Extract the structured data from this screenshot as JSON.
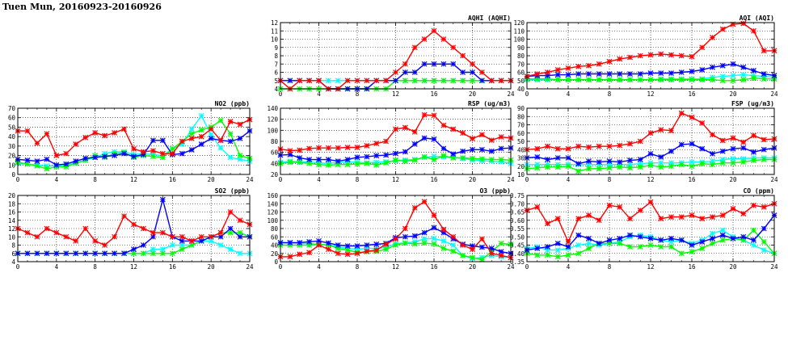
{
  "page": {
    "title": "Tuen Mun, 20160923-20160926"
  },
  "colors": {
    "red": "#ff0000",
    "blue": "#0000ff",
    "green": "#00ff00",
    "cyan": "#00ffff"
  },
  "chart_data": [
    {
      "id": "aqhi",
      "type": "line",
      "title": "AQHI (AQHI)",
      "xlim": [
        0,
        24
      ],
      "xticks": [
        0,
        4,
        8,
        12,
        16,
        20,
        24
      ],
      "ylim": [
        4,
        12
      ],
      "yticks": [
        4,
        5,
        6,
        7,
        8,
        9,
        10,
        11,
        12
      ],
      "grid": true,
      "series": [
        {
          "color": "red",
          "values": [
            5,
            4,
            5,
            5,
            5,
            4,
            4,
            5,
            5,
            5,
            5,
            5,
            6,
            7,
            9,
            10,
            11,
            10,
            9,
            8,
            7,
            6,
            5,
            5,
            5
          ]
        },
        {
          "color": "blue",
          "values": [
            5,
            5,
            5,
            5,
            5,
            4,
            4,
            4,
            4,
            4,
            5,
            5,
            5,
            6,
            6,
            7,
            7,
            7,
            7,
            6,
            6,
            5,
            5,
            5,
            5
          ]
        },
        {
          "color": "green",
          "values": [
            4,
            4,
            4,
            4,
            4,
            4,
            4,
            4,
            4,
            4,
            4,
            4,
            5,
            5,
            5,
            5,
            5,
            5,
            5,
            5,
            5,
            5,
            5,
            5,
            5
          ]
        },
        {
          "color": "cyan",
          "values": [
            5,
            5,
            5,
            5,
            5,
            5,
            5,
            5,
            5,
            5,
            5,
            5,
            5,
            5,
            5,
            5,
            5,
            5,
            5,
            5,
            5,
            5,
            5,
            5,
            5
          ]
        }
      ]
    },
    {
      "id": "aqi",
      "type": "line",
      "title": "AQI (AQI)",
      "xlim": [
        0,
        24
      ],
      "xticks": [
        0,
        4,
        8,
        12,
        16,
        20,
        24
      ],
      "ylim": [
        40,
        120
      ],
      "yticks": [
        40,
        50,
        60,
        70,
        80,
        90,
        100,
        110,
        120
      ],
      "grid": true,
      "series": [
        {
          "color": "red",
          "values": [
            55,
            58,
            60,
            63,
            65,
            67,
            68,
            70,
            73,
            76,
            78,
            80,
            81,
            82,
            81,
            80,
            79,
            90,
            102,
            112,
            118,
            119,
            110,
            86,
            86
          ]
        },
        {
          "color": "blue",
          "values": [
            55,
            56,
            56,
            57,
            57,
            58,
            58,
            58,
            58,
            58,
            58,
            58,
            59,
            59,
            59,
            60,
            61,
            63,
            66,
            68,
            70,
            66,
            62,
            58,
            56
          ]
        },
        {
          "color": "green",
          "values": [
            52,
            52,
            52,
            51,
            51,
            51,
            51,
            51,
            51,
            51,
            51,
            51,
            51,
            51,
            51,
            51,
            51,
            51,
            51,
            50,
            50,
            51,
            53,
            52,
            52
          ]
        },
        {
          "color": "cyan",
          "values": [
            51,
            51,
            51,
            51,
            51,
            51,
            51,
            51,
            51,
            51,
            51,
            51,
            51,
            52,
            52,
            52,
            52,
            52,
            54,
            55,
            56,
            57,
            56,
            55,
            54
          ]
        }
      ]
    },
    {
      "id": "no2",
      "type": "line",
      "title": "NO2 (ppb)",
      "xlim": [
        0,
        24
      ],
      "xticks": [
        0,
        4,
        8,
        12,
        16,
        20,
        24
      ],
      "ylim": [
        0,
        70
      ],
      "yticks": [
        0,
        10,
        20,
        30,
        40,
        50,
        60,
        70
      ],
      "grid": true,
      "series": [
        {
          "color": "red",
          "values": [
            46,
            46,
            33,
            43,
            20,
            22,
            32,
            39,
            44,
            41,
            44,
            48,
            27,
            24,
            25,
            22,
            22,
            35,
            38,
            40,
            48,
            36,
            56,
            53,
            58
          ]
        },
        {
          "color": "blue",
          "values": [
            16,
            15,
            14,
            16,
            10,
            11,
            14,
            17,
            18,
            19,
            20,
            22,
            19,
            21,
            36,
            36,
            21,
            22,
            26,
            32,
            38,
            36,
            35,
            38,
            46
          ]
        },
        {
          "color": "green",
          "values": [
            13,
            11,
            9,
            6,
            8,
            8,
            12,
            15,
            20,
            18,
            22,
            23,
            18,
            20,
            19,
            18,
            27,
            35,
            43,
            47,
            50,
            57,
            43,
            20,
            17
          ]
        },
        {
          "color": "cyan",
          "values": [
            12,
            11,
            10,
            9,
            9,
            10,
            12,
            15,
            18,
            22,
            24,
            24,
            21,
            22,
            21,
            20,
            27,
            32,
            48,
            62,
            42,
            28,
            18,
            16,
            14
          ]
        }
      ]
    },
    {
      "id": "rsp",
      "type": "line",
      "title": "RSP (ug/m3)",
      "xlim": [
        0,
        24
      ],
      "xticks": [
        0,
        4,
        8,
        12,
        16,
        20,
        24
      ],
      "ylim": [
        20,
        140
      ],
      "yticks": [
        20,
        40,
        60,
        80,
        100,
        120,
        140
      ],
      "grid": true,
      "series": [
        {
          "color": "red",
          "values": [
            66,
            63,
            64,
            67,
            68,
            68,
            68,
            69,
            69,
            72,
            76,
            80,
            102,
            105,
            97,
            128,
            127,
            109,
            102,
            95,
            85,
            92,
            82,
            88,
            86
          ]
        },
        {
          "color": "blue",
          "values": [
            55,
            56,
            50,
            47,
            47,
            47,
            44,
            47,
            51,
            52,
            54,
            55,
            58,
            61,
            75,
            86,
            84,
            67,
            57,
            62,
            65,
            65,
            62,
            67,
            68
          ]
        },
        {
          "color": "green",
          "values": [
            40,
            42,
            42,
            40,
            38,
            37,
            38,
            38,
            39,
            40,
            37,
            41,
            46,
            44,
            46,
            52,
            47,
            54,
            50,
            50,
            49,
            48,
            47,
            47,
            46
          ]
        },
        {
          "color": "cyan",
          "values": [
            42,
            44,
            43,
            43,
            41,
            40,
            42,
            43,
            42,
            41,
            42,
            43,
            45,
            46,
            47,
            51,
            53,
            52,
            51,
            49,
            46,
            45,
            44,
            43,
            40
          ]
        }
      ]
    },
    {
      "id": "fsp",
      "type": "line",
      "title": "FSP (ug/m3)",
      "xlim": [
        0,
        24
      ],
      "xticks": [
        0,
        4,
        8,
        12,
        16,
        20,
        24
      ],
      "ylim": [
        10,
        90
      ],
      "yticks": [
        10,
        20,
        30,
        40,
        50,
        60,
        70,
        80,
        90
      ],
      "grid": true,
      "series": [
        {
          "color": "red",
          "values": [
            40,
            41,
            44,
            41,
            41,
            44,
            43,
            44,
            44,
            45,
            47,
            50,
            60,
            64,
            63,
            84,
            79,
            72,
            58,
            51,
            54,
            49,
            57,
            52,
            53
          ]
        },
        {
          "color": "blue",
          "values": [
            30,
            31,
            28,
            30,
            30,
            23,
            26,
            25,
            26,
            25,
            27,
            28,
            35,
            31,
            38,
            46,
            47,
            41,
            35,
            38,
            41,
            42,
            37,
            40,
            42
          ]
        },
        {
          "color": "green",
          "values": [
            17,
            18,
            19,
            19,
            20,
            14,
            17,
            17,
            18,
            19,
            18,
            19,
            21,
            19,
            20,
            22,
            20,
            23,
            22,
            24,
            24,
            25,
            27,
            28,
            28
          ]
        },
        {
          "color": "cyan",
          "values": [
            22,
            22,
            22,
            22,
            22,
            22,
            22,
            22,
            22,
            22,
            22,
            23,
            24,
            24,
            24,
            24,
            25,
            25,
            26,
            28,
            29,
            29,
            30,
            30,
            30
          ]
        }
      ]
    },
    {
      "id": "so2",
      "type": "line",
      "title": "SO2 (ppb)",
      "xlim": [
        0,
        24
      ],
      "xticks": [
        0,
        4,
        8,
        12,
        16,
        20,
        24
      ],
      "ylim": [
        4,
        20
      ],
      "yticks": [
        4,
        6,
        8,
        10,
        12,
        14,
        16,
        18,
        20
      ],
      "grid": true,
      "series": [
        {
          "color": "red",
          "values": [
            12,
            11,
            10,
            12,
            11,
            10,
            9,
            12,
            9,
            8,
            10,
            15,
            13,
            12,
            11,
            11,
            10,
            10,
            9,
            10,
            10,
            11,
            16,
            14,
            13
          ]
        },
        {
          "color": "blue",
          "values": [
            6,
            6,
            6,
            6,
            6,
            6,
            6,
            6,
            6,
            6,
            6,
            6,
            7,
            8,
            10,
            19,
            10,
            9,
            9,
            9,
            10,
            10,
            12,
            10,
            10
          ]
        },
        {
          "color": "green",
          "values": [
            6,
            6,
            6,
            6,
            6,
            6,
            6,
            6,
            6,
            6,
            6,
            6,
            6,
            6,
            6,
            6,
            6,
            7,
            8,
            9,
            10,
            11,
            11,
            11,
            10
          ]
        },
        {
          "color": "cyan",
          "values": [
            6,
            6,
            6,
            6,
            6,
            6,
            6,
            6,
            6,
            6,
            6,
            6,
            6,
            6,
            7,
            7,
            8,
            8,
            8,
            9,
            9,
            8,
            7,
            6,
            6
          ]
        }
      ]
    },
    {
      "id": "o3",
      "type": "line",
      "title": "O3 (ppb)",
      "xlim": [
        0,
        24
      ],
      "xticks": [
        0,
        4,
        8,
        12,
        16,
        20,
        24
      ],
      "ylim": [
        0,
        160
      ],
      "yticks": [
        0,
        20,
        40,
        60,
        80,
        100,
        120,
        140,
        160
      ],
      "grid": true,
      "series": [
        {
          "color": "red",
          "values": [
            12,
            12,
            18,
            22,
            40,
            30,
            20,
            18,
            20,
            25,
            28,
            42,
            55,
            80,
            130,
            145,
            112,
            78,
            60,
            40,
            30,
            55,
            20,
            15,
            10
          ]
        },
        {
          "color": "blue",
          "values": [
            46,
            46,
            46,
            48,
            50,
            45,
            40,
            38,
            38,
            40,
            42,
            44,
            58,
            60,
            62,
            70,
            82,
            70,
            55,
            42,
            38,
            35,
            32,
            24,
            20
          ]
        },
        {
          "color": "green",
          "values": [
            40,
            40,
            40,
            40,
            42,
            40,
            32,
            28,
            22,
            24,
            25,
            30,
            40,
            45,
            43,
            45,
            43,
            32,
            25,
            15,
            10,
            5,
            25,
            44,
            42
          ]
        },
        {
          "color": "cyan",
          "values": [
            45,
            45,
            44,
            44,
            42,
            40,
            36,
            32,
            30,
            32,
            32,
            34,
            44,
            45,
            48,
            55,
            56,
            50,
            40,
            15,
            8,
            10,
            15,
            12,
            10
          ]
        }
      ]
    },
    {
      "id": "co",
      "type": "line",
      "title": "CO (ppm)",
      "xlim": [
        0,
        24
      ],
      "xticks": [
        0,
        4,
        8,
        12,
        16,
        20,
        24
      ],
      "ylim": [
        0.35,
        0.75
      ],
      "yticks": [
        0.35,
        0.4,
        0.45,
        0.5,
        0.55,
        0.6,
        0.65,
        0.7,
        0.75
      ],
      "grid": true,
      "series": [
        {
          "color": "red",
          "values": [
            0.66,
            0.68,
            0.58,
            0.61,
            0.47,
            0.61,
            0.63,
            0.6,
            0.69,
            0.68,
            0.61,
            0.66,
            0.71,
            0.61,
            0.62,
            0.62,
            0.63,
            0.61,
            0.62,
            0.63,
            0.67,
            0.64,
            0.69,
            0.68,
            0.7
          ]
        },
        {
          "color": "blue",
          "values": [
            0.42,
            0.43,
            0.44,
            0.46,
            0.44,
            0.51,
            0.49,
            0.46,
            0.48,
            0.49,
            0.51,
            0.5,
            0.49,
            0.48,
            0.49,
            0.48,
            0.45,
            0.47,
            0.49,
            0.51,
            0.49,
            0.5,
            0.48,
            0.55,
            0.63
          ]
        },
        {
          "color": "green",
          "values": [
            0.4,
            0.39,
            0.39,
            0.38,
            0.39,
            0.4,
            0.43,
            0.46,
            0.46,
            0.46,
            0.44,
            0.44,
            0.45,
            0.44,
            0.44,
            0.4,
            0.41,
            0.43,
            0.46,
            0.48,
            0.49,
            0.48,
            0.54,
            0.47,
            0.4
          ]
        },
        {
          "color": "cyan",
          "values": [
            0.43,
            0.44,
            0.42,
            0.42,
            0.43,
            0.45,
            0.46,
            0.45,
            0.46,
            0.47,
            0.5,
            0.51,
            0.5,
            0.48,
            0.47,
            0.48,
            0.46,
            0.48,
            0.52,
            0.54,
            0.5,
            0.48,
            0.45,
            0.42,
            0.4
          ]
        }
      ]
    }
  ]
}
